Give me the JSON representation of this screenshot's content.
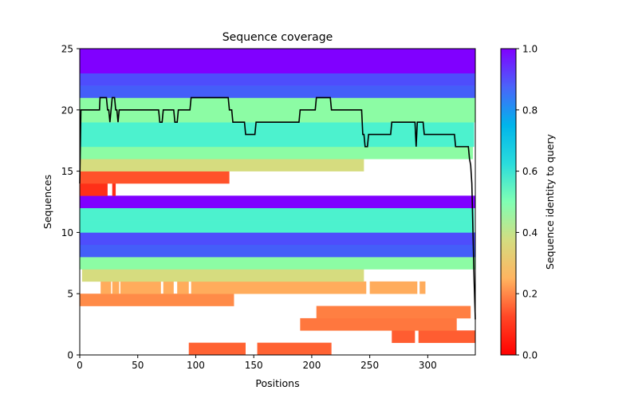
{
  "chart_data": {
    "type": "heatmap",
    "title": "Sequence coverage",
    "xlabel": "Positions",
    "ylabel": "Sequences",
    "xlim": [
      0,
      341
    ],
    "ylim": [
      0,
      25
    ],
    "xticks": [
      0,
      50,
      100,
      150,
      200,
      250,
      300
    ],
    "yticks": [
      0,
      5,
      10,
      15,
      20,
      25
    ],
    "grid": false,
    "colorbar": {
      "label": "Sequence identity to query",
      "range": [
        0,
        1
      ],
      "ticks": [
        "0.0",
        "0.2",
        "0.4",
        "0.6",
        "0.8",
        "1.0"
      ],
      "colormap": "rainbow",
      "position": "right"
    },
    "rows": [
      {
        "seq": 0,
        "identity": 0.13,
        "color": "#ff6232",
        "segments": [
          [
            94,
            143
          ],
          [
            153,
            217
          ]
        ]
      },
      {
        "seq": 1,
        "identity": 0.13,
        "color": "#ff5d31",
        "segments": [
          [
            269,
            289
          ],
          [
            292,
            341
          ]
        ]
      },
      {
        "seq": 2,
        "identity": 0.16,
        "color": "#ff773e",
        "segments": [
          [
            190,
            325
          ]
        ]
      },
      {
        "seq": 3,
        "identity": 0.17,
        "color": "#ff7f42",
        "segments": [
          [
            204,
            337
          ]
        ]
      },
      {
        "seq": 4,
        "identity": 0.18,
        "color": "#ff8b48",
        "segments": [
          [
            0,
            133
          ]
        ]
      },
      {
        "seq": 5,
        "identity": 0.23,
        "color": "#ffac5c",
        "segments": [
          [
            18,
            27
          ],
          [
            28,
            34
          ],
          [
            35,
            70
          ],
          [
            72,
            81
          ],
          [
            84,
            94
          ],
          [
            96,
            247
          ],
          [
            250,
            291
          ],
          [
            293,
            298
          ]
        ]
      },
      {
        "seq": 6,
        "identity": 0.33,
        "color": "#d6dc7f",
        "segments": [
          [
            2,
            245
          ]
        ]
      },
      {
        "seq": 7,
        "identity": 0.49,
        "color": "#8cfca4",
        "segments": [
          [
            0,
            341
          ]
        ]
      },
      {
        "seq": 8,
        "identity": 0.87,
        "color": "#445ef9",
        "segments": [
          [
            0,
            341
          ]
        ]
      },
      {
        "seq": 9,
        "identity": 0.9,
        "color": "#4e4dfc",
        "segments": [
          [
            0,
            341
          ]
        ]
      },
      {
        "seq": 10,
        "identity": 0.62,
        "color": "#4cf2ce",
        "segments": [
          [
            0,
            340
          ]
        ]
      },
      {
        "seq": 11,
        "identity": 0.62,
        "color": "#4cf2ce",
        "segments": [
          [
            0,
            340
          ]
        ]
      },
      {
        "seq": 12,
        "identity": 1.0,
        "color": "#8000ff",
        "segments": [
          [
            0,
            341
          ]
        ]
      },
      {
        "seq": 13,
        "identity": 0.04,
        "color": "#ff2f18",
        "segments": [
          [
            0,
            24
          ],
          [
            28,
            31
          ]
        ]
      },
      {
        "seq": 14,
        "identity": 0.1,
        "color": "#ff522a",
        "segments": [
          [
            0,
            129
          ]
        ]
      },
      {
        "seq": 15,
        "identity": 0.33,
        "color": "#d6dc7f",
        "segments": [
          [
            0,
            245
          ]
        ]
      },
      {
        "seq": 16,
        "identity": 0.49,
        "color": "#8cfca4",
        "segments": [
          [
            0,
            339
          ]
        ]
      },
      {
        "seq": 17,
        "identity": 0.62,
        "color": "#4cf2ce",
        "segments": [
          [
            0,
            340
          ]
        ]
      },
      {
        "seq": 18,
        "identity": 0.62,
        "color": "#4cf2ce",
        "segments": [
          [
            0,
            340
          ]
        ]
      },
      {
        "seq": 19,
        "identity": 0.49,
        "color": "#8cfca4",
        "segments": [
          [
            0,
            341
          ]
        ]
      },
      {
        "seq": 20,
        "identity": 0.49,
        "color": "#8cfca4",
        "segments": [
          [
            0,
            341
          ]
        ]
      },
      {
        "seq": 21,
        "identity": 0.87,
        "color": "#445ef9",
        "segments": [
          [
            0,
            341
          ]
        ]
      },
      {
        "seq": 22,
        "identity": 0.9,
        "color": "#4e4dfc",
        "segments": [
          [
            0,
            341
          ]
        ]
      },
      {
        "seq": 23,
        "identity": 1.0,
        "color": "#8000ff",
        "segments": [
          [
            0,
            341
          ]
        ]
      },
      {
        "seq": 24,
        "identity": 1.0,
        "color": "#8000ff",
        "segments": [
          [
            0,
            341
          ]
        ]
      }
    ],
    "coverage_line": {
      "color": "#000000",
      "points": [
        [
          0,
          14
        ],
        [
          1,
          20
        ],
        [
          17,
          20
        ],
        [
          17.5,
          21
        ],
        [
          23,
          21
        ],
        [
          24,
          20
        ],
        [
          25,
          20
        ],
        [
          26,
          19
        ],
        [
          27,
          20
        ],
        [
          28,
          21
        ],
        [
          30,
          21
        ],
        [
          31,
          20
        ],
        [
          32,
          20
        ],
        [
          33,
          19
        ],
        [
          34,
          20
        ],
        [
          68,
          20
        ],
        [
          69,
          19
        ],
        [
          71,
          19
        ],
        [
          72,
          20
        ],
        [
          81,
          20
        ],
        [
          82,
          19
        ],
        [
          84,
          19
        ],
        [
          85,
          20
        ],
        [
          95,
          20
        ],
        [
          96,
          21
        ],
        [
          128,
          21
        ],
        [
          129,
          20
        ],
        [
          131,
          20
        ],
        [
          132,
          19
        ],
        [
          142,
          19
        ],
        [
          143,
          18
        ],
        [
          151,
          18
        ],
        [
          152,
          19
        ],
        [
          189,
          19
        ],
        [
          190,
          20
        ],
        [
          203,
          20
        ],
        [
          204,
          21
        ],
        [
          216,
          21
        ],
        [
          217,
          20
        ],
        [
          243,
          20
        ],
        [
          244,
          18
        ],
        [
          245,
          18
        ],
        [
          246,
          17
        ],
        [
          248,
          17
        ],
        [
          249,
          18
        ],
        [
          268,
          18
        ],
        [
          269,
          19
        ],
        [
          289,
          19
        ],
        [
          290,
          17
        ],
        [
          291,
          19
        ],
        [
          296,
          19
        ],
        [
          297,
          18
        ],
        [
          323,
          18
        ],
        [
          324,
          17
        ],
        [
          335,
          17
        ],
        [
          336,
          16
        ],
        [
          337,
          15.5
        ],
        [
          338,
          14
        ],
        [
          339,
          10
        ],
        [
          340,
          6
        ],
        [
          341,
          2.9
        ]
      ]
    }
  }
}
